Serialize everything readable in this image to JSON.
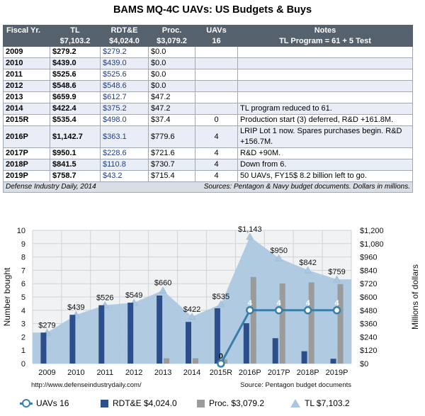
{
  "title": "BAMS MQ-4C UAVs: US Budgets & Buys",
  "table": {
    "headers": {
      "row1": [
        "Fiscal Yr.",
        "TL",
        "RDT&E",
        "Proc.",
        "UAVs",
        "Notes"
      ],
      "row2": [
        "",
        "$7,103.2",
        "$4,024.0",
        "$3,079.2",
        "16",
        "TL Program = 61 + 5 Test"
      ]
    },
    "rows": [
      {
        "year": "2009",
        "tl": "$279.2",
        "rdte": "$279.2",
        "proc": "$0.0",
        "uavs": "",
        "notes": ""
      },
      {
        "year": "2010",
        "tl": "$439.0",
        "rdte": "$439.0",
        "proc": "$0.0",
        "uavs": "",
        "notes": ""
      },
      {
        "year": "2011",
        "tl": "$525.6",
        "rdte": "$525.6",
        "proc": "$0.0",
        "uavs": "",
        "notes": ""
      },
      {
        "year": "2012",
        "tl": "$548.6",
        "rdte": "$548.6",
        "proc": "$0.0",
        "uavs": "",
        "notes": ""
      },
      {
        "year": "2013",
        "tl": "$659.9",
        "rdte": "$612.7",
        "proc": "$47.2",
        "uavs": "",
        "notes": ""
      },
      {
        "year": "2014",
        "tl": "$422.4",
        "rdte": "$375.2",
        "proc": "$47.2",
        "uavs": "",
        "notes": "TL program reduced to 61."
      },
      {
        "year": "2015R",
        "tl": "$535.4",
        "rdte": "$498.0",
        "proc": "$37.4",
        "uavs": "0",
        "notes": "Production start (3) deferred, R&D +161.8M."
      },
      {
        "year": "2016P",
        "tl": "$1,142.7",
        "rdte": "$363.1",
        "proc": "$779.6",
        "uavs": "4",
        "notes": "LRIP Lot 1 now. Spares purchases begin. R&D +156.7M."
      },
      {
        "year": "2017P",
        "tl": "$950.1",
        "rdte": "$228.6",
        "proc": "$721.6",
        "uavs": "4",
        "notes": "R&D +90M."
      },
      {
        "year": "2018P",
        "tl": "$841.5",
        "rdte": "$110.8",
        "proc": "$730.7",
        "uavs": "4",
        "notes": "Down from 6."
      },
      {
        "year": "2019P",
        "tl": "$758.7",
        "rdte": "$43.2",
        "proc": "$715.4",
        "uavs": "4",
        "notes": "50 UAVs, FY15$ 8.2 billion left to go."
      }
    ],
    "footer_left": "Defense Industry Daily, 2014",
    "footer_right": "Sources: Pentagon & Navy budget documents. Dollars in millions."
  },
  "chart_data": {
    "type": "bar",
    "categories": [
      "2009",
      "2010",
      "2011",
      "2012",
      "2013",
      "2014",
      "2015R",
      "2016P",
      "2017P",
      "2018P",
      "2019P"
    ],
    "series": [
      {
        "name": "UAVs 16",
        "kind": "line",
        "axis": "left",
        "values": [
          null,
          null,
          null,
          null,
          null,
          null,
          0,
          4,
          4,
          4,
          4
        ],
        "labels": [
          "",
          "",
          "",
          "",
          "",
          "",
          "0",
          "4",
          "4",
          "4",
          "4"
        ],
        "color": "#3a7fa8"
      },
      {
        "name": "RDT&E $4,024.0",
        "kind": "bar",
        "axis": "right",
        "values": [
          279.2,
          439.0,
          525.6,
          548.6,
          612.7,
          375.2,
          498.0,
          363.1,
          228.6,
          110.8,
          43.2
        ],
        "color": "#2c4f8c"
      },
      {
        "name": "Proc. $3,079.2",
        "kind": "bar",
        "axis": "right",
        "values": [
          0.0,
          0.0,
          0.0,
          0.0,
          47.2,
          47.2,
          37.4,
          779.6,
          721.6,
          730.7,
          715.4
        ],
        "color": "#9b9b9b"
      },
      {
        "name": "TL $7,103.2",
        "kind": "area",
        "axis": "right",
        "values": [
          279.2,
          439.0,
          525.6,
          548.6,
          659.9,
          422.4,
          535.4,
          1142.7,
          950.1,
          841.5,
          758.7
        ],
        "labels": [
          "$279",
          "$439",
          "$526",
          "$549",
          "$660",
          "$422",
          "$535",
          "$1,143",
          "$950",
          "$842",
          "$759"
        ],
        "color": "#a9c7e0"
      }
    ],
    "ylabel": "Number bought",
    "y2label": "Millions of dollars",
    "ylim": [
      0,
      10
    ],
    "y2lim": [
      0,
      1200
    ],
    "yticks": [
      "0",
      "1",
      "2",
      "3",
      "4",
      "5",
      "6",
      "7",
      "8",
      "9",
      "10"
    ],
    "y2ticks": [
      "$0",
      "$120",
      "$240",
      "$360",
      "$480",
      "$600",
      "$720",
      "$840",
      "$960",
      "$1,080",
      "$1,200"
    ],
    "grid": true,
    "legend_position": "bottom",
    "note_left": "http://www.defenseindustrydaily.com/",
    "note_right": "Source: Pentagon budget documents"
  },
  "legend": {
    "uav": "UAVs 16",
    "rdte": "RDT&E $4,024.0",
    "proc": "Proc. $3,079.2",
    "tl": "TL $7,103.2"
  },
  "colors": {
    "header_bg": "#56616e",
    "rdte": "#2c4f8c",
    "proc": "#9b9b9b",
    "tl_area": "#a9c7e0",
    "uav_line": "#3a7fa8"
  }
}
